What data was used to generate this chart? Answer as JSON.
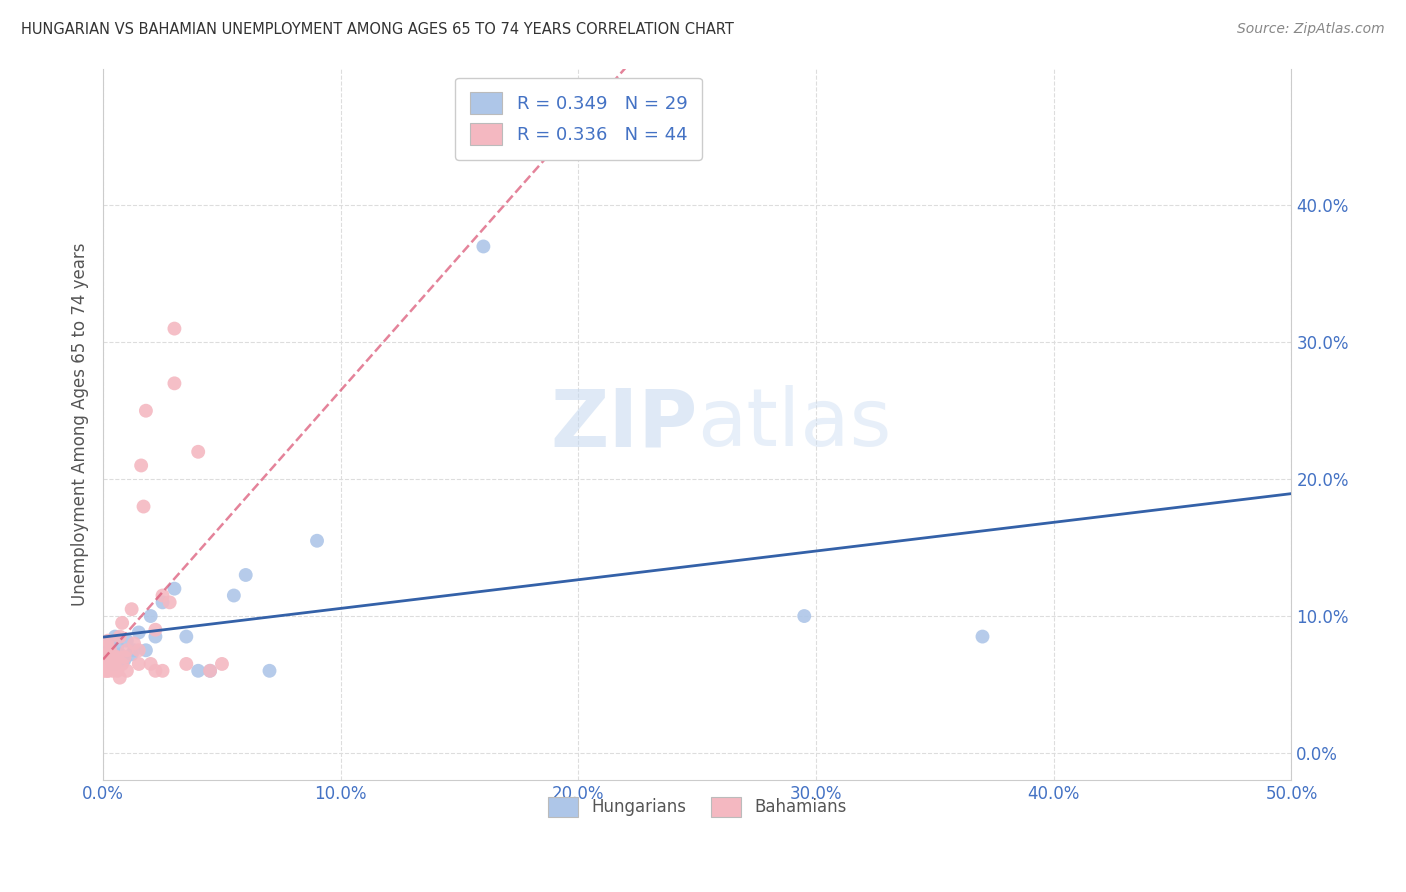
{
  "title": "HUNGARIAN VS BAHAMIAN UNEMPLOYMENT AMONG AGES 65 TO 74 YEARS CORRELATION CHART",
  "source": "Source: ZipAtlas.com",
  "ylabel": "Unemployment Among Ages 65 to 74 years",
  "xlim": [
    0.0,
    0.5
  ],
  "ylim": [
    -0.02,
    0.5
  ],
  "watermark_zip": "ZIP",
  "watermark_atlas": "atlas",
  "legend_entry_1": "R = 0.349   N = 29",
  "legend_entry_2": "R = 0.336   N = 44",
  "legend_labels": [
    "Hungarians",
    "Bahamians"
  ],
  "hungarian_color": "#aec6e8",
  "bahamian_color": "#f4b8c1",
  "hungarian_line_color": "#3461a8",
  "bahamian_line_color": "#d94f70",
  "bahamian_trendline_color": "#bbbbbb",
  "background_color": "#ffffff",
  "grid_color": "#dddddd",
  "title_color": "#333333",
  "axis_tick_color": "#4472c4",
  "marker_size": 100,
  "ytick_positions": [
    0.0,
    0.1,
    0.2,
    0.3,
    0.4
  ],
  "ytick_labels": [
    "0.0%",
    "10.0%",
    "20.0%",
    "30.0%",
    "40.0%"
  ],
  "xtick_positions": [
    0.0,
    0.1,
    0.2,
    0.3,
    0.4,
    0.5
  ],
  "xtick_labels": [
    "0.0%",
    "10.0%",
    "20.0%",
    "30.0%",
    "40.0%",
    "50.0%"
  ],
  "hungarians_x": [
    0.001,
    0.002,
    0.003,
    0.004,
    0.005,
    0.005,
    0.006,
    0.007,
    0.008,
    0.009,
    0.01,
    0.012,
    0.013,
    0.015,
    0.018,
    0.02,
    0.022,
    0.025,
    0.03,
    0.035,
    0.04,
    0.045,
    0.055,
    0.06,
    0.07,
    0.09,
    0.16,
    0.295,
    0.37
  ],
  "hungarians_y": [
    0.075,
    0.08,
    0.07,
    0.065,
    0.085,
    0.065,
    0.078,
    0.072,
    0.07,
    0.068,
    0.082,
    0.072,
    0.075,
    0.088,
    0.075,
    0.1,
    0.085,
    0.11,
    0.12,
    0.085,
    0.06,
    0.06,
    0.115,
    0.13,
    0.06,
    0.155,
    0.37,
    0.1,
    0.085
  ],
  "bahamians_x": [
    0.0,
    0.0,
    0.001,
    0.001,
    0.001,
    0.002,
    0.002,
    0.002,
    0.002,
    0.003,
    0.003,
    0.003,
    0.004,
    0.004,
    0.005,
    0.005,
    0.006,
    0.006,
    0.007,
    0.007,
    0.008,
    0.008,
    0.009,
    0.01,
    0.01,
    0.012,
    0.013,
    0.015,
    0.015,
    0.016,
    0.017,
    0.018,
    0.02,
    0.022,
    0.022,
    0.025,
    0.025,
    0.028,
    0.03,
    0.03,
    0.035,
    0.04,
    0.045,
    0.05
  ],
  "bahamians_y": [
    0.06,
    0.065,
    0.07,
    0.065,
    0.06,
    0.06,
    0.078,
    0.082,
    0.06,
    0.065,
    0.07,
    0.075,
    0.06,
    0.065,
    0.065,
    0.07,
    0.07,
    0.06,
    0.055,
    0.085,
    0.095,
    0.065,
    0.07,
    0.075,
    0.06,
    0.105,
    0.08,
    0.065,
    0.075,
    0.21,
    0.18,
    0.25,
    0.065,
    0.09,
    0.06,
    0.115,
    0.06,
    0.11,
    0.27,
    0.31,
    0.065,
    0.22,
    0.06,
    0.065
  ]
}
